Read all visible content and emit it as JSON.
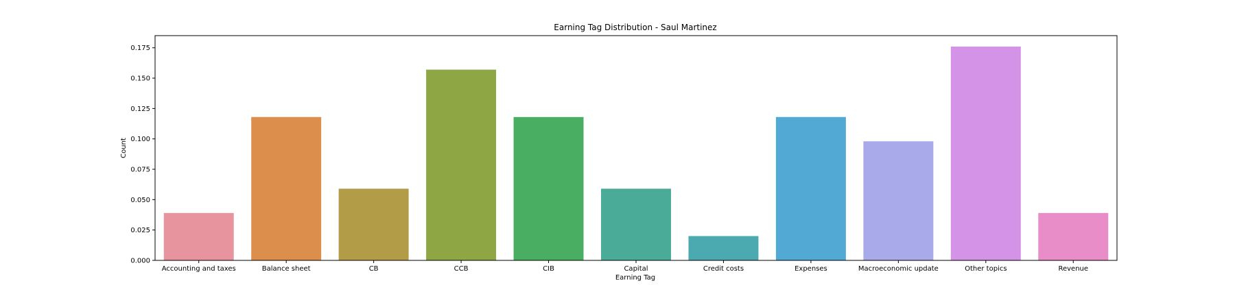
{
  "chart_data": {
    "type": "bar",
    "title": "Earning Tag Distribution - Saul Martinez",
    "xlabel": "Earning Tag",
    "ylabel": "Count",
    "categories": [
      "Accounting and taxes",
      "Balance sheet",
      "CB",
      "CCB",
      "CIB",
      "Capital",
      "Credit costs",
      "Expenses",
      "Macroeconomic update",
      "Other topics",
      "Revenue"
    ],
    "values": [
      0.039,
      0.118,
      0.059,
      0.157,
      0.118,
      0.059,
      0.02,
      0.118,
      0.098,
      0.176,
      0.039
    ],
    "colors": [
      "#e8949f",
      "#dc8f4d",
      "#b29c47",
      "#8ea644",
      "#49ae62",
      "#4aab98",
      "#4ba9b0",
      "#52a9d4",
      "#a8aaea",
      "#d493e6",
      "#e88dc8"
    ],
    "ylim": [
      0,
      0.185
    ],
    "yticks": [
      "0.000",
      "0.025",
      "0.050",
      "0.075",
      "0.100",
      "0.125",
      "0.150",
      "0.175"
    ],
    "grid": false,
    "legend": "none"
  }
}
